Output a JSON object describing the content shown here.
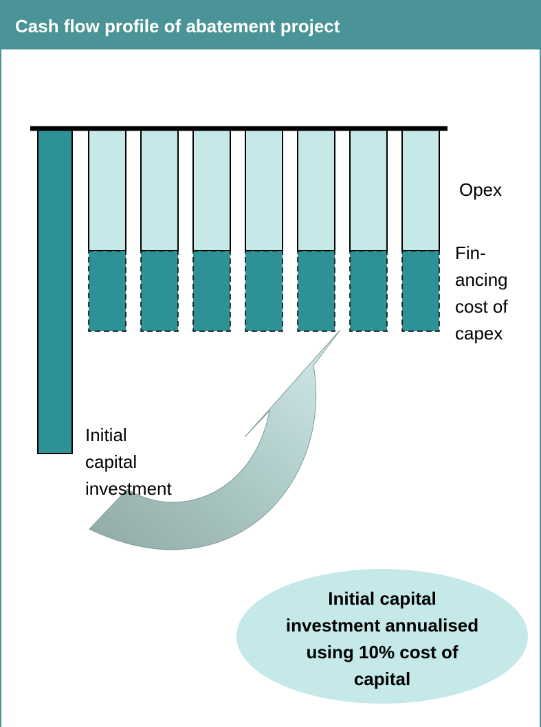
{
  "header": {
    "title": "Cash flow profile of abatement project"
  },
  "labels": {
    "opex": "Opex",
    "financing": [
      "Fin-",
      "ancing",
      "cost of",
      "capex"
    ],
    "initial": [
      "Initial",
      "capital",
      "investment"
    ]
  },
  "callout": {
    "lines": [
      "Initial capital",
      "investment annualised",
      "using 10% cost of",
      "capital"
    ]
  }
}
